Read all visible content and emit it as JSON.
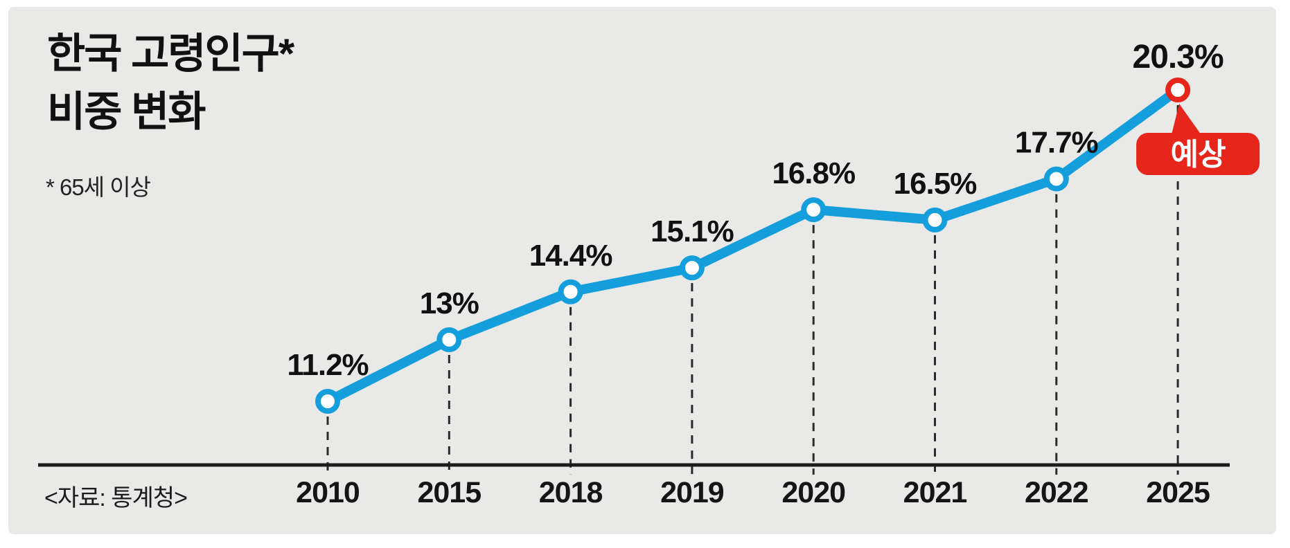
{
  "page": {
    "background": "#ffffff",
    "panel_background": "#e9e9e8"
  },
  "title": {
    "line1": "한국 고령인구*",
    "line2": "비중 변화"
  },
  "footnote": "* 65세 이상",
  "source": "<자료: 통계청>",
  "chart_data": {
    "type": "line",
    "title": "한국 고령인구 비중 변화",
    "categories": [
      "2010",
      "2015",
      "2018",
      "2019",
      "2020",
      "2021",
      "2022",
      "2025"
    ],
    "series": [
      {
        "name": "고령인구 비중 (%)",
        "values": [
          11.2,
          13,
          14.4,
          15.1,
          16.8,
          16.5,
          17.7,
          20.3
        ]
      }
    ],
    "point_labels": [
      "11.2%",
      "13%",
      "14.4%",
      "15.1%",
      "16.8%",
      "16.5%",
      "17.7%",
      "20.3%"
    ],
    "forecast": {
      "index": 7,
      "annotation": "예상"
    },
    "ylim": [
      11.2,
      20.3
    ],
    "xlabel": "",
    "ylabel": "",
    "legend": "none",
    "guides": "dashed vertical line from each point to x-axis",
    "colors": {
      "line": "#149EDC",
      "marker_fill": "#FCFCFC",
      "label_text": "#111111",
      "axis": "#1B1B1B",
      "guide": "#2A2A2A",
      "forecast_badge_red": "#E6261B",
      "forecast_label_red": "#D0212A"
    }
  }
}
